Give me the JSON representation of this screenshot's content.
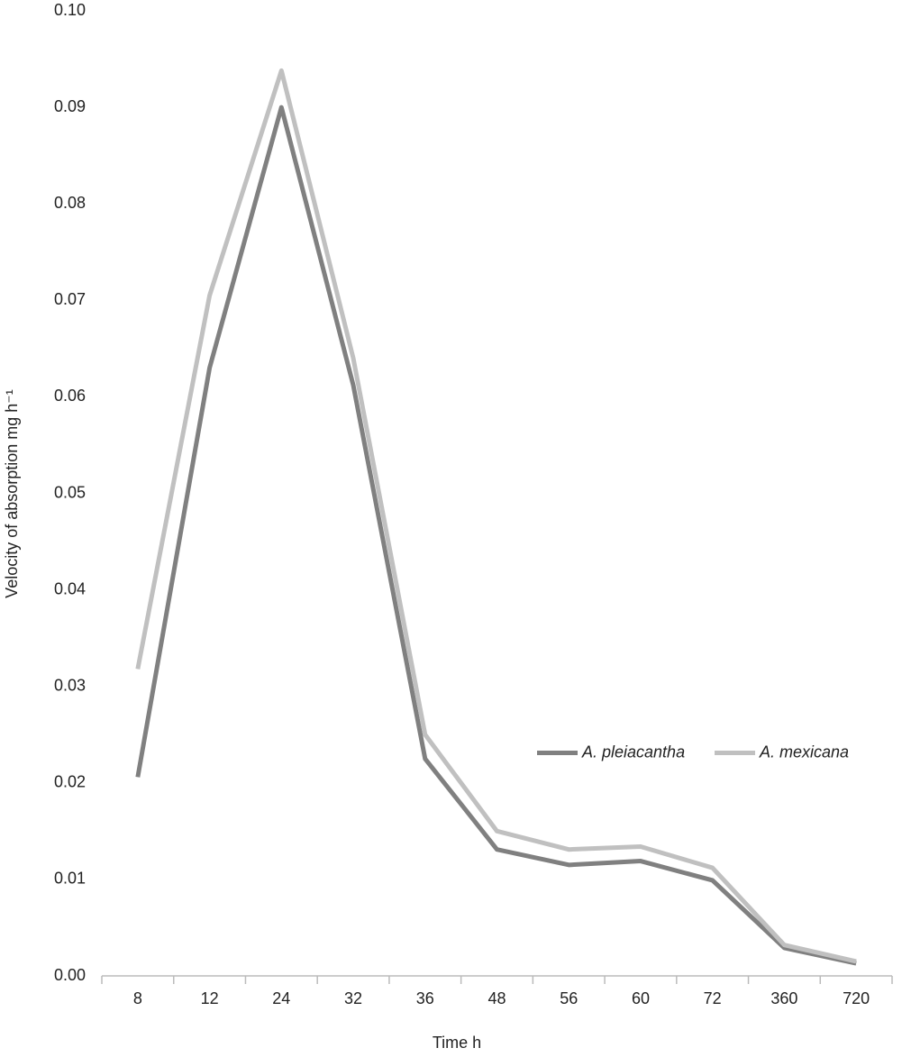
{
  "chart_data": {
    "type": "line",
    "x_label": "Time h",
    "y_label": "Velocity of absorption mg h⁻¹",
    "categories": [
      "8",
      "12",
      "24",
      "32",
      "36",
      "48",
      "56",
      "60",
      "72",
      "360",
      "720"
    ],
    "series": [
      {
        "name": "A. pleiacantha",
        "color": "#808080",
        "values": [
          0.0206,
          0.063,
          0.09,
          0.0612,
          0.0225,
          0.0131,
          0.0115,
          0.0119,
          0.0099,
          0.0029,
          0.0013
        ]
      },
      {
        "name": "A. mexicana",
        "color": "#c0c0c0",
        "values": [
          0.0318,
          0.0705,
          0.0938,
          0.064,
          0.025,
          0.015,
          0.0131,
          0.0134,
          0.0112,
          0.0032,
          0.0015
        ]
      }
    ],
    "ylim": [
      0,
      0.1
    ],
    "yticks": [
      {
        "value": 0,
        "label": "0.00"
      },
      0.01,
      0.02,
      0.03,
      0.04,
      0.05,
      0.06,
      0.07,
      0.08,
      0.09,
      {
        "value": 0.1,
        "label": "0.10"
      }
    ],
    "grid": false,
    "legend_position": "center right"
  }
}
